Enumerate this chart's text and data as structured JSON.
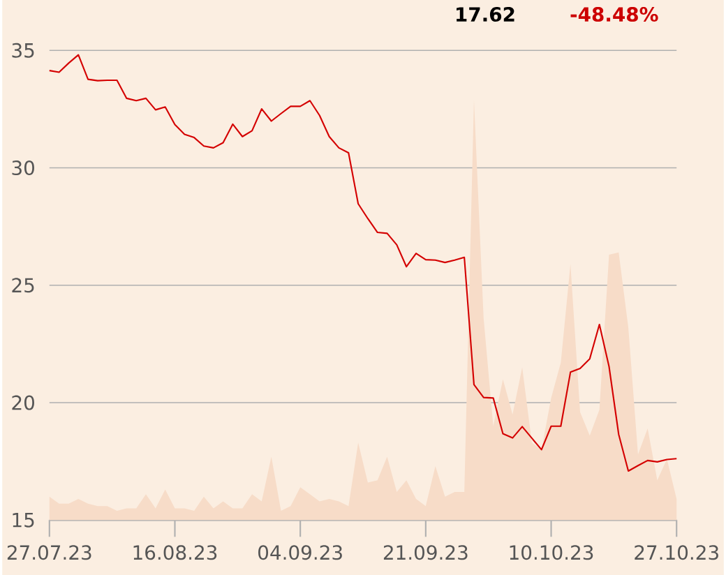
{
  "chart_data": {
    "type": "line",
    "annotations": [
      "17.62",
      "-48.48%"
    ],
    "categories": [
      "27.07.23",
      null,
      null,
      null,
      null,
      null,
      null,
      null,
      null,
      null,
      null,
      null,
      null,
      "16.08.23",
      null,
      null,
      null,
      null,
      null,
      null,
      null,
      null,
      null,
      null,
      null,
      null,
      "04.09.23",
      null,
      null,
      null,
      null,
      null,
      null,
      null,
      null,
      null,
      null,
      null,
      null,
      "21.09.23",
      null,
      null,
      null,
      null,
      null,
      null,
      null,
      null,
      null,
      null,
      null,
      null,
      "10.10.23",
      null,
      null,
      null,
      null,
      null,
      null,
      null,
      null,
      null,
      null,
      null,
      null,
      "27.10.23"
    ],
    "ylim": [
      15,
      35
    ],
    "yticks": [
      15,
      20,
      25,
      30,
      35
    ],
    "grid": "y",
    "series": [
      {
        "type": "area",
        "color": "#f7dcc8",
        "values": [
          16.0,
          15.7,
          15.7,
          15.9,
          15.7,
          15.6,
          15.6,
          15.4,
          15.5,
          15.5,
          16.1,
          15.5,
          16.3,
          15.5,
          15.5,
          15.4,
          16.0,
          15.5,
          15.8,
          15.5,
          15.5,
          16.1,
          15.8,
          17.7,
          15.4,
          15.6,
          16.4,
          16.1,
          15.8,
          15.9,
          15.8,
          15.6,
          18.3,
          16.6,
          16.7,
          17.7,
          16.2,
          16.7,
          15.9,
          15.6,
          17.3,
          16.0,
          16.2,
          16.2,
          32.9,
          23.6,
          19.0,
          21.0,
          19.5,
          21.5,
          18.3,
          18.0,
          20.2,
          21.7,
          25.9,
          19.6,
          18.6,
          19.7,
          26.3,
          26.4,
          23.2,
          17.8,
          18.9,
          16.7,
          17.6,
          15.9
        ]
      },
      {
        "color": "#d40000",
        "values": [
          34.14,
          34.07,
          34.46,
          34.81,
          33.77,
          33.71,
          33.73,
          33.73,
          32.96,
          32.86,
          32.96,
          32.47,
          32.59,
          31.84,
          31.43,
          31.29,
          30.93,
          30.85,
          31.07,
          31.86,
          31.33,
          31.58,
          32.51,
          31.99,
          32.31,
          32.62,
          32.62,
          32.86,
          32.23,
          31.33,
          30.85,
          30.64,
          28.47,
          27.84,
          27.25,
          27.21,
          26.72,
          25.79,
          26.36,
          26.09,
          26.07,
          25.97,
          26.07,
          26.19,
          20.77,
          20.22,
          20.2,
          18.68,
          18.5,
          18.98,
          18.49,
          18.0,
          19.0,
          19.0,
          21.3,
          21.46,
          21.87,
          23.33,
          21.54,
          18.65,
          17.09,
          17.32,
          17.54,
          17.48,
          17.58,
          17.62
        ]
      }
    ]
  }
}
